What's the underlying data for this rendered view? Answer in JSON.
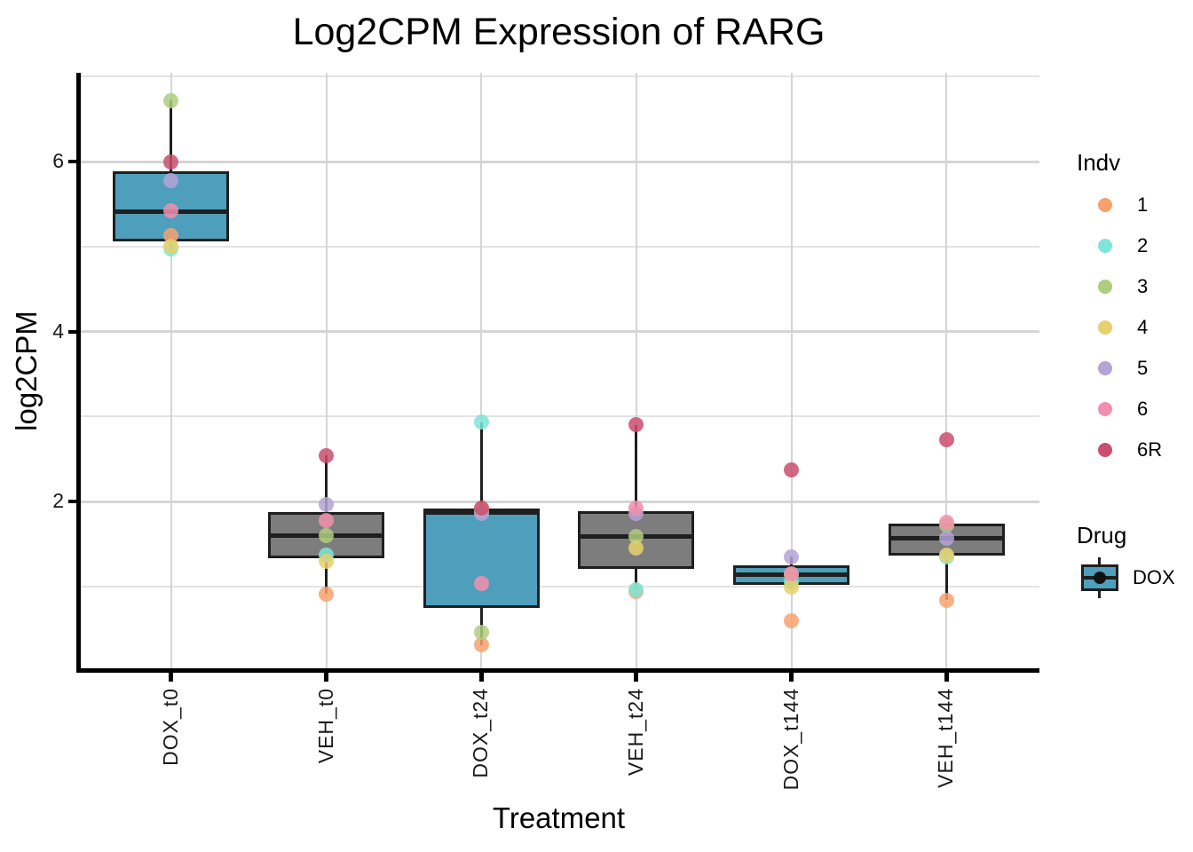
{
  "title": "Log2CPM Expression of RARG",
  "x_axis": {
    "label": "Treatment",
    "categories": [
      "DOX_t0",
      "VEH_t0",
      "DOX_t24",
      "VEH_t24",
      "DOX_t144",
      "VEH_t144"
    ]
  },
  "y_axis": {
    "label": "log2CPM",
    "major_ticks": [
      2,
      4,
      6
    ],
    "minor_gridlines": [
      1,
      3,
      5,
      7
    ]
  },
  "legend": {
    "indv": {
      "title": "Indv",
      "entries": [
        {
          "label": "1",
          "color": "#F7A26E"
        },
        {
          "label": "2",
          "color": "#7DE6D6"
        },
        {
          "label": "3",
          "color": "#AFCC7F"
        },
        {
          "label": "4",
          "color": "#E8D06C"
        },
        {
          "label": "5",
          "color": "#B4A3D6"
        },
        {
          "label": "6",
          "color": "#F38FAE"
        },
        {
          "label": "6R",
          "color": "#C94E6F"
        }
      ]
    },
    "drug": {
      "title": "Drug",
      "entries": [
        {
          "label": "DOX",
          "color": "#4E9FBC"
        }
      ]
    }
  },
  "colors": {
    "dox_fill": "#4E9FBC",
    "veh_fill": "#7D7D7D",
    "box_border": "#1F1F1F",
    "grid_major": "#D5D5D5",
    "grid_minor": "#E3E3E3",
    "axis": "#000000"
  },
  "chart_data": {
    "type": "boxplot",
    "title": "Log2CPM Expression of RARG",
    "xlabel": "Treatment",
    "ylabel": "log2CPM",
    "ylim": [
      0,
      7.2
    ],
    "grid": true,
    "legend_position": "right",
    "categories": [
      "DOX_t0",
      "VEH_t0",
      "DOX_t24",
      "VEH_t24",
      "DOX_t144",
      "VEH_t144"
    ],
    "groups": [
      {
        "treatment": "DOX_t0",
        "drug": "DOX",
        "q1": 5.06,
        "median": 5.41,
        "q3": 5.88,
        "whisker_low": 4.97,
        "whisker_high": 6.72,
        "points": [
          {
            "indv": "1",
            "value": 5.13
          },
          {
            "indv": "2",
            "value": 4.97
          },
          {
            "indv": "3",
            "value": 6.72
          },
          {
            "indv": "4",
            "value": 5.0
          },
          {
            "indv": "5",
            "value": 5.78
          },
          {
            "indv": "6",
            "value": 5.42
          },
          {
            "indv": "6R",
            "value": 5.99
          }
        ]
      },
      {
        "treatment": "VEH_t0",
        "drug": "VEH",
        "q1": 1.33,
        "median": 1.6,
        "q3": 1.87,
        "whisker_low": 0.91,
        "whisker_high": 2.54,
        "points": [
          {
            "indv": "1",
            "value": 0.91
          },
          {
            "indv": "2",
            "value": 1.37
          },
          {
            "indv": "3",
            "value": 1.6
          },
          {
            "indv": "4",
            "value": 1.29
          },
          {
            "indv": "5",
            "value": 1.96
          },
          {
            "indv": "6",
            "value": 1.78
          },
          {
            "indv": "6R",
            "value": 2.54
          }
        ]
      },
      {
        "treatment": "DOX_t24",
        "drug": "DOX",
        "q1": 0.75,
        "median": 1.87,
        "q3": 1.92,
        "whisker_low": 0.31,
        "whisker_high": 2.93,
        "points": [
          {
            "indv": "1",
            "value": 0.31
          },
          {
            "indv": "2",
            "value": 2.93
          },
          {
            "indv": "3",
            "value": 0.46
          },
          {
            "indv": "4",
            "value": 1.9
          },
          {
            "indv": "5",
            "value": 1.86
          },
          {
            "indv": "6",
            "value": 1.03
          },
          {
            "indv": "6R",
            "value": 1.92
          }
        ]
      },
      {
        "treatment": "VEH_t24",
        "drug": "VEH",
        "q1": 1.21,
        "median": 1.59,
        "q3": 1.89,
        "whisker_low": 0.94,
        "whisker_high": 2.9,
        "points": [
          {
            "indv": "1",
            "value": 0.94
          },
          {
            "indv": "2",
            "value": 0.96
          },
          {
            "indv": "3",
            "value": 1.59
          },
          {
            "indv": "4",
            "value": 1.45
          },
          {
            "indv": "5",
            "value": 1.86
          },
          {
            "indv": "6",
            "value": 1.92
          },
          {
            "indv": "6R",
            "value": 2.9
          }
        ]
      },
      {
        "treatment": "DOX_t144",
        "drug": "DOX",
        "q1": 1.02,
        "median": 1.14,
        "q3": 1.25,
        "whisker_low": 0.99,
        "whisker_high": 1.35,
        "points": [
          {
            "indv": "1",
            "value": 0.6
          },
          {
            "indv": "2",
            "value": 1.05
          },
          {
            "indv": "3",
            "value": 1.14
          },
          {
            "indv": "4",
            "value": 0.99
          },
          {
            "indv": "5",
            "value": 1.35
          },
          {
            "indv": "6",
            "value": 1.15
          },
          {
            "indv": "6R",
            "value": 2.37
          }
        ]
      },
      {
        "treatment": "VEH_t144",
        "drug": "VEH",
        "q1": 1.36,
        "median": 1.57,
        "q3": 1.74,
        "whisker_low": 0.84,
        "whisker_high": 1.75,
        "points": [
          {
            "indv": "1",
            "value": 0.84
          },
          {
            "indv": "2",
            "value": 1.35
          },
          {
            "indv": "3",
            "value": 1.72
          },
          {
            "indv": "4",
            "value": 1.37
          },
          {
            "indv": "5",
            "value": 1.57
          },
          {
            "indv": "6",
            "value": 1.75
          },
          {
            "indv": "6R",
            "value": 2.73
          }
        ]
      }
    ]
  }
}
